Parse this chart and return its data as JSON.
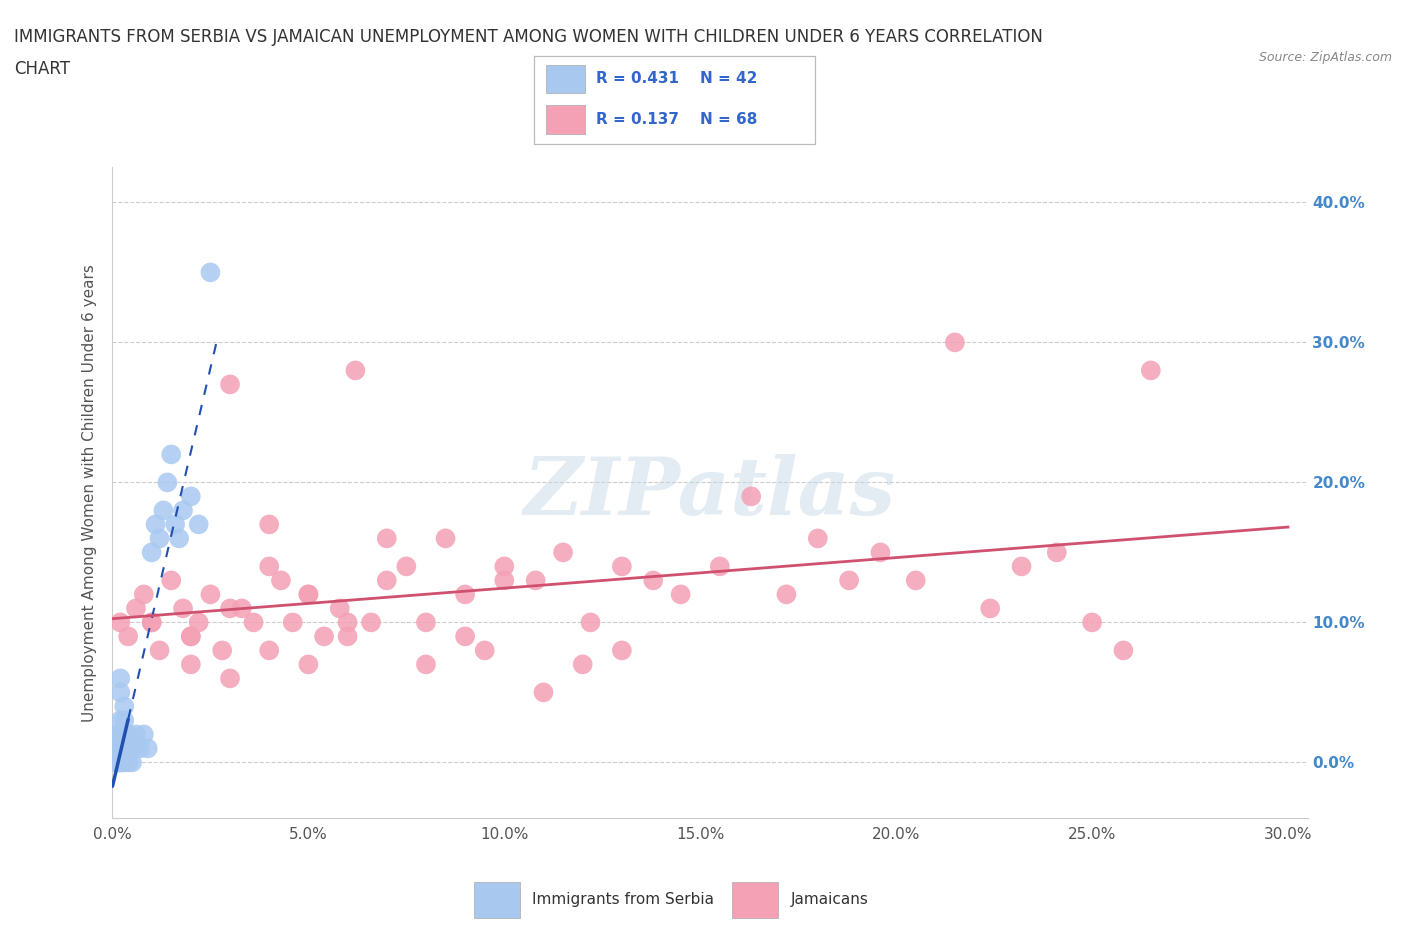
{
  "title_line1": "IMMIGRANTS FROM SERBIA VS JAMAICAN UNEMPLOYMENT AMONG WOMEN WITH CHILDREN UNDER 6 YEARS CORRELATION",
  "title_line2": "CHART",
  "source_text": "Source: ZipAtlas.com",
  "ylabel": "Unemployment Among Women with Children Under 6 years",
  "legend_label1": "Immigrants from Serbia",
  "legend_label2": "Jamaicans",
  "R1": 0.431,
  "N1": 42,
  "R2": 0.137,
  "N2": 68,
  "color_blue": "#a8c8f0",
  "color_pink": "#f4a0b5",
  "trendline_blue": "#2050b0",
  "trendline_pink": "#d05070",
  "background": "#ffffff",
  "grid_color": "#cccccc",
  "watermark_text": "ZIPatlas",
  "serbia_x": [
    0.001,
    0.001,
    0.001,
    0.001,
    0.001,
    0.0015,
    0.0015,
    0.002,
    0.002,
    0.002,
    0.002,
    0.002,
    0.002,
    0.002,
    0.0025,
    0.003,
    0.003,
    0.003,
    0.003,
    0.003,
    0.0035,
    0.004,
    0.004,
    0.004,
    0.005,
    0.005,
    0.006,
    0.007,
    0.008,
    0.009,
    0.01,
    0.011,
    0.012,
    0.013,
    0.014,
    0.015,
    0.016,
    0.017,
    0.018,
    0.02,
    0.022,
    0.025
  ],
  "serbia_y": [
    0.0,
    0.0,
    0.005,
    0.01,
    0.02,
    0.0,
    0.01,
    0.0,
    0.0,
    0.01,
    0.02,
    0.03,
    0.05,
    0.06,
    0.0,
    0.0,
    0.01,
    0.02,
    0.03,
    0.04,
    0.01,
    0.0,
    0.01,
    0.02,
    0.0,
    0.01,
    0.02,
    0.01,
    0.02,
    0.01,
    0.15,
    0.17,
    0.16,
    0.18,
    0.2,
    0.22,
    0.17,
    0.16,
    0.18,
    0.19,
    0.17,
    0.35
  ],
  "jamaica_x": [
    0.002,
    0.004,
    0.006,
    0.008,
    0.01,
    0.012,
    0.015,
    0.018,
    0.02,
    0.022,
    0.025,
    0.028,
    0.03,
    0.033,
    0.036,
    0.04,
    0.043,
    0.046,
    0.05,
    0.054,
    0.058,
    0.062,
    0.066,
    0.07,
    0.075,
    0.08,
    0.085,
    0.09,
    0.095,
    0.1,
    0.108,
    0.115,
    0.122,
    0.13,
    0.138,
    0.145,
    0.155,
    0.163,
    0.172,
    0.18,
    0.188,
    0.196,
    0.205,
    0.215,
    0.224,
    0.232,
    0.241,
    0.25,
    0.258,
    0.265,
    0.01,
    0.02,
    0.03,
    0.04,
    0.05,
    0.06,
    0.07,
    0.08,
    0.09,
    0.1,
    0.11,
    0.12,
    0.13,
    0.02,
    0.03,
    0.04,
    0.05,
    0.06
  ],
  "jamaica_y": [
    0.1,
    0.09,
    0.11,
    0.12,
    0.1,
    0.08,
    0.13,
    0.11,
    0.09,
    0.1,
    0.12,
    0.08,
    0.27,
    0.11,
    0.1,
    0.17,
    0.13,
    0.1,
    0.12,
    0.09,
    0.11,
    0.28,
    0.1,
    0.13,
    0.14,
    0.1,
    0.16,
    0.12,
    0.08,
    0.14,
    0.13,
    0.15,
    0.1,
    0.14,
    0.13,
    0.12,
    0.14,
    0.19,
    0.12,
    0.16,
    0.13,
    0.15,
    0.13,
    0.3,
    0.11,
    0.14,
    0.15,
    0.1,
    0.08,
    0.28,
    0.1,
    0.09,
    0.11,
    0.14,
    0.12,
    0.1,
    0.16,
    0.07,
    0.09,
    0.13,
    0.05,
    0.07,
    0.08,
    0.07,
    0.06,
    0.08,
    0.07,
    0.09
  ],
  "xlim_min": 0.0,
  "xlim_max": 0.305,
  "ylim_min": -0.04,
  "ylim_max": 0.425,
  "x_ticks": [
    0.0,
    0.05,
    0.1,
    0.15,
    0.2,
    0.25,
    0.3
  ],
  "x_tick_labels": [
    "0.0%",
    "5.0%",
    "10.0%",
    "15.0%",
    "20.0%",
    "25.0%",
    "30.0%"
  ],
  "y_ticks": [
    0.0,
    0.1,
    0.2,
    0.3,
    0.4
  ],
  "y_tick_labels_right": [
    "0.0%",
    "10.0%",
    "20.0%",
    "30.0%",
    "40.0%"
  ]
}
